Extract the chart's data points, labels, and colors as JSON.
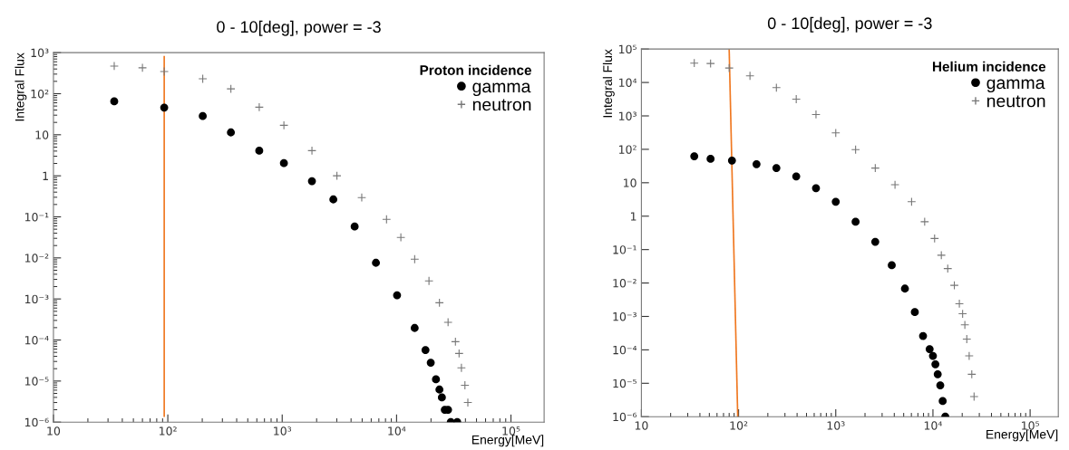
{
  "chart_data": [
    {
      "type": "scatter",
      "title": "0 - 10[deg], power = -3",
      "xlabel": "Energy[MeV]",
      "ylabel": "Integral Flux",
      "legend_title": "Proton incidence",
      "legend": "top right",
      "log": "xy",
      "grid": false,
      "xlim": [
        10,
        195000
      ],
      "ylim": [
        1e-06,
        1000
      ],
      "xticks": [
        10,
        {
          "value": 100,
          "label": "10²"
        },
        {
          "value": 1000,
          "label": "10³"
        },
        {
          "value": 10000,
          "label": "10⁴"
        },
        {
          "value": 100000,
          "label": "10⁵"
        }
      ],
      "yticks": [
        {
          "value": 1e-06,
          "label": "10⁻⁶"
        },
        {
          "value": 1e-05,
          "label": "10⁻⁵"
        },
        {
          "value": 0.0001,
          "label": "10⁻⁴"
        },
        {
          "value": 0.001,
          "label": "10⁻³"
        },
        {
          "value": 0.01,
          "label": "10⁻²"
        },
        {
          "value": 0.1,
          "label": "10⁻¹"
        },
        1,
        10,
        {
          "value": 100,
          "label": "10²"
        },
        {
          "value": 1000,
          "label": "10³"
        }
      ],
      "series": [
        {
          "name": "gamma",
          "marker": "circle",
          "color": "#000000",
          "x": [
            34,
            93,
            202,
            356,
            630,
            1035,
            1820,
            2800,
            4300,
            6600,
            10100,
            14400,
            17900,
            19900,
            22100,
            23700,
            24900,
            26400,
            28200,
            29800,
            33900
          ],
          "values": [
            65,
            46,
            28.5,
            11.4,
            4.1,
            2.03,
            0.74,
            0.266,
            0.058,
            0.0076,
            0.00123,
            0.000196,
            5.7e-05,
            2.8e-05,
            1.1e-05,
            6.2e-06,
            4e-06,
            2e-06,
            2e-06,
            1e-06,
            1e-06
          ]
        },
        {
          "name": "neutron",
          "marker": "cross",
          "color": "#777777",
          "x": [
            34,
            60,
            93,
            202,
            356,
            630,
            1035,
            1820,
            3010,
            4960,
            8170,
            10900,
            14400,
            19200,
            23700,
            28200,
            32700,
            35200,
            36900,
            39600,
            42000
          ],
          "values": [
            471,
            427,
            347,
            231,
            131,
            47,
            17,
            4.1,
            1.0,
            0.295,
            0.087,
            0.0316,
            0.0093,
            0.00275,
            0.00081,
            0.00027,
            9.1e-05,
            4.7e-05,
            2.1e-05,
            7.9e-06,
            3e-06
          ]
        },
        {
          "type": "line",
          "color": "#f07820",
          "x": [
            93,
            93
          ],
          "values": [
            800,
            1.4e-06
          ]
        }
      ]
    },
    {
      "type": "scatter",
      "title": "0 - 10[deg], power = -3",
      "xlabel": "Energy[MeV]",
      "ylabel": "Integral Flux",
      "legend_title": "Helium incidence",
      "legend": "top right",
      "log": "xy",
      "grid": false,
      "xlim": [
        10,
        195000
      ],
      "ylim": [
        1e-06,
        100000
      ],
      "xticks": [
        10,
        {
          "value": 100,
          "label": "10²"
        },
        {
          "value": 1000,
          "label": "10³"
        },
        {
          "value": 10000,
          "label": "10⁴"
        },
        {
          "value": 100000,
          "label": "10⁵"
        }
      ],
      "yticks": [
        {
          "value": 1e-06,
          "label": "10⁻⁶"
        },
        {
          "value": 1e-05,
          "label": "10⁻⁵"
        },
        {
          "value": 0.0001,
          "label": "10⁻⁴"
        },
        {
          "value": 0.001,
          "label": "10⁻³"
        },
        {
          "value": 0.01,
          "label": "10⁻²"
        },
        {
          "value": 0.1,
          "label": "10⁻¹"
        },
        1,
        10,
        {
          "value": 100,
          "label": "10²"
        },
        {
          "value": 1000,
          "label": "10³"
        },
        {
          "value": 10000,
          "label": "10⁴"
        },
        {
          "value": 100000,
          "label": "10⁵"
        }
      ],
      "series": [
        {
          "name": "gamma",
          "marker": "circle",
          "color": "#000000",
          "x": [
            35,
            51.5,
            85.5,
            153,
            245,
            392,
            626,
            1000,
            1600,
            2550,
            3770,
            5150,
            6510,
            7910,
            9250,
            10000,
            10600,
            11200,
            11900,
            12600,
            13400
          ],
          "values": [
            62,
            52,
            46,
            36,
            27.5,
            15.5,
            6.9,
            2.7,
            0.68,
            0.171,
            0.034,
            0.0068,
            0.00135,
            0.00026,
            0.000105,
            6.6e-05,
            3.7e-05,
            1.86e-05,
            8.7e-06,
            2.95e-06,
            1e-06
          ]
        },
        {
          "name": "neutron",
          "marker": "cross",
          "color": "#777777",
          "x": [
            35,
            51.5,
            80,
            131,
            245,
            392,
            626,
            1000,
            1600,
            2550,
            4070,
            6030,
            8220,
            10400,
            12200,
            14200,
            16600,
            18700,
            20200,
            21300,
            22300,
            23600,
            25100,
            26500
          ],
          "values": [
            38000,
            37000,
            27000,
            15800,
            7000,
            3170,
            1100,
            310,
            98,
            27.5,
            8.7,
            2.7,
            0.68,
            0.215,
            0.068,
            0.027,
            0.0085,
            0.0024,
            0.0012,
            0.00056,
            0.00021,
            6.6e-05,
            1.86e-05,
            4e-06
          ]
        },
        {
          "type": "line",
          "color": "#f07820",
          "x": [
            80,
            98
          ],
          "values": [
            100000,
            1e-06
          ]
        }
      ]
    }
  ]
}
